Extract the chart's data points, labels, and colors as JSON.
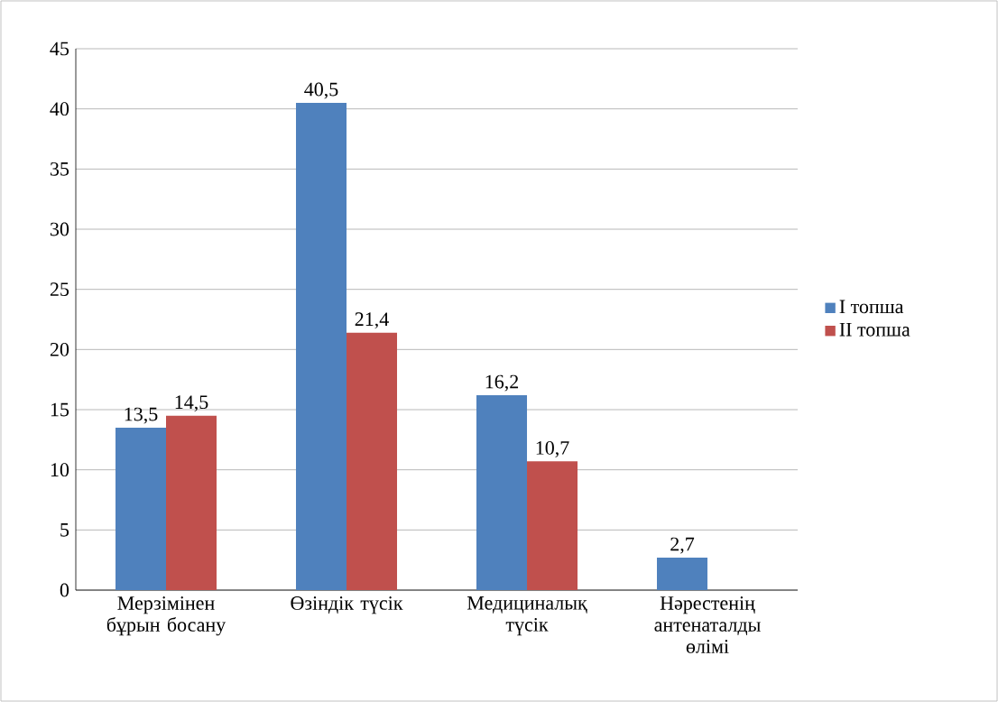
{
  "chart_data": {
    "type": "bar",
    "categories": [
      "Мерзімінен бұрын босану",
      "Өзіндік түсік",
      "Медициналық түсік",
      "Нәрестенің антенаталды өлімі"
    ],
    "series": [
      {
        "name": "I топша",
        "color": "#4f81bd",
        "values": [
          13.5,
          40.5,
          16.2,
          2.7
        ],
        "value_labels": [
          "13,5",
          "40,5",
          "16,2",
          "2,7"
        ]
      },
      {
        "name": "II топша",
        "color": "#c0504d",
        "values": [
          14.5,
          21.4,
          10.7,
          null
        ],
        "value_labels": [
          "14,5",
          "21,4",
          "10,7",
          null
        ]
      }
    ],
    "ylim": [
      0,
      45
    ],
    "yticks": [
      0,
      5,
      10,
      15,
      20,
      25,
      30,
      35,
      40,
      45
    ],
    "grid": "y",
    "legend": "right"
  }
}
